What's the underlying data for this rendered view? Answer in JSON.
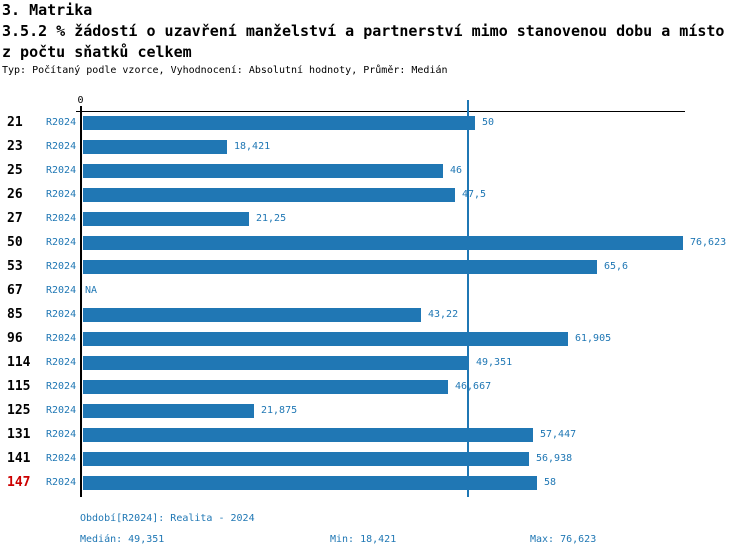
{
  "header": {
    "title": "3. Matrika",
    "subtitle_line1": "3.5.2 % žádostí o uzavření manželství a partnerství mimo stanovenou dobu a místo",
    "subtitle_line2": "z počtu sňatků celkem",
    "meta": "Typ: Počítaný podle vzorce, Vyhodnocení: Absolutní hodnoty, Průměr: Medián"
  },
  "chart_data": {
    "type": "bar",
    "orientation": "horizontal",
    "title": "3.5.2 % žádostí o uzavření manželství a partnerství mimo stanovenou dobu a místo z počtu sňatků celkem",
    "axis_origin_label": "0",
    "xlim": [
      0,
      76.623
    ],
    "grid": false,
    "legend": false,
    "median_line_value": 49.351,
    "categories": [
      "21",
      "23",
      "25",
      "26",
      "27",
      "50",
      "53",
      "67",
      "85",
      "96",
      "114",
      "115",
      "125",
      "131",
      "141",
      "147"
    ],
    "series": [
      {
        "name": "R2024",
        "values": [
          50,
          18.421,
          46,
          47.5,
          21.25,
          76.623,
          65.6,
          null,
          43.22,
          61.905,
          49.351,
          46.667,
          21.875,
          57.447,
          56.938,
          58
        ]
      }
    ],
    "rows": [
      {
        "id": "21",
        "period": "R2024",
        "value": 50,
        "value_label": "50",
        "highlight": false
      },
      {
        "id": "23",
        "period": "R2024",
        "value": 18.421,
        "value_label": "18,421",
        "highlight": false
      },
      {
        "id": "25",
        "period": "R2024",
        "value": 46,
        "value_label": "46",
        "highlight": false
      },
      {
        "id": "26",
        "period": "R2024",
        "value": 47.5,
        "value_label": "47,5",
        "highlight": false
      },
      {
        "id": "27",
        "period": "R2024",
        "value": 21.25,
        "value_label": "21,25",
        "highlight": false
      },
      {
        "id": "50",
        "period": "R2024",
        "value": 76.623,
        "value_label": "76,623",
        "highlight": false
      },
      {
        "id": "53",
        "period": "R2024",
        "value": 65.6,
        "value_label": "65,6",
        "highlight": false
      },
      {
        "id": "67",
        "period": "R2024",
        "value": null,
        "value_label": "NA",
        "highlight": false
      },
      {
        "id": "85",
        "period": "R2024",
        "value": 43.22,
        "value_label": "43,22",
        "highlight": false
      },
      {
        "id": "96",
        "period": "R2024",
        "value": 61.905,
        "value_label": "61,905",
        "highlight": false
      },
      {
        "id": "114",
        "period": "R2024",
        "value": 49.351,
        "value_label": "49,351",
        "highlight": false
      },
      {
        "id": "115",
        "period": "R2024",
        "value": 46.667,
        "value_label": "46,667",
        "highlight": false
      },
      {
        "id": "125",
        "period": "R2024",
        "value": 21.875,
        "value_label": "21,875",
        "highlight": false
      },
      {
        "id": "131",
        "period": "R2024",
        "value": 57.447,
        "value_label": "57,447",
        "highlight": false
      },
      {
        "id": "141",
        "period": "R2024",
        "value": 56.938,
        "value_label": "56,938",
        "highlight": false
      },
      {
        "id": "147",
        "period": "R2024",
        "value": 58,
        "value_label": "58",
        "highlight": true
      }
    ],
    "colors": {
      "bar": "#2077b4",
      "blue_text": "#1f77b4",
      "highlight_red": "#cc0000",
      "axis": "#000000"
    }
  },
  "footer": {
    "period_info": "Období[R2024]: Realita - 2024",
    "median": "Medián: 49,351",
    "min": "Min: 18,421",
    "max": "Max: 76,623"
  }
}
